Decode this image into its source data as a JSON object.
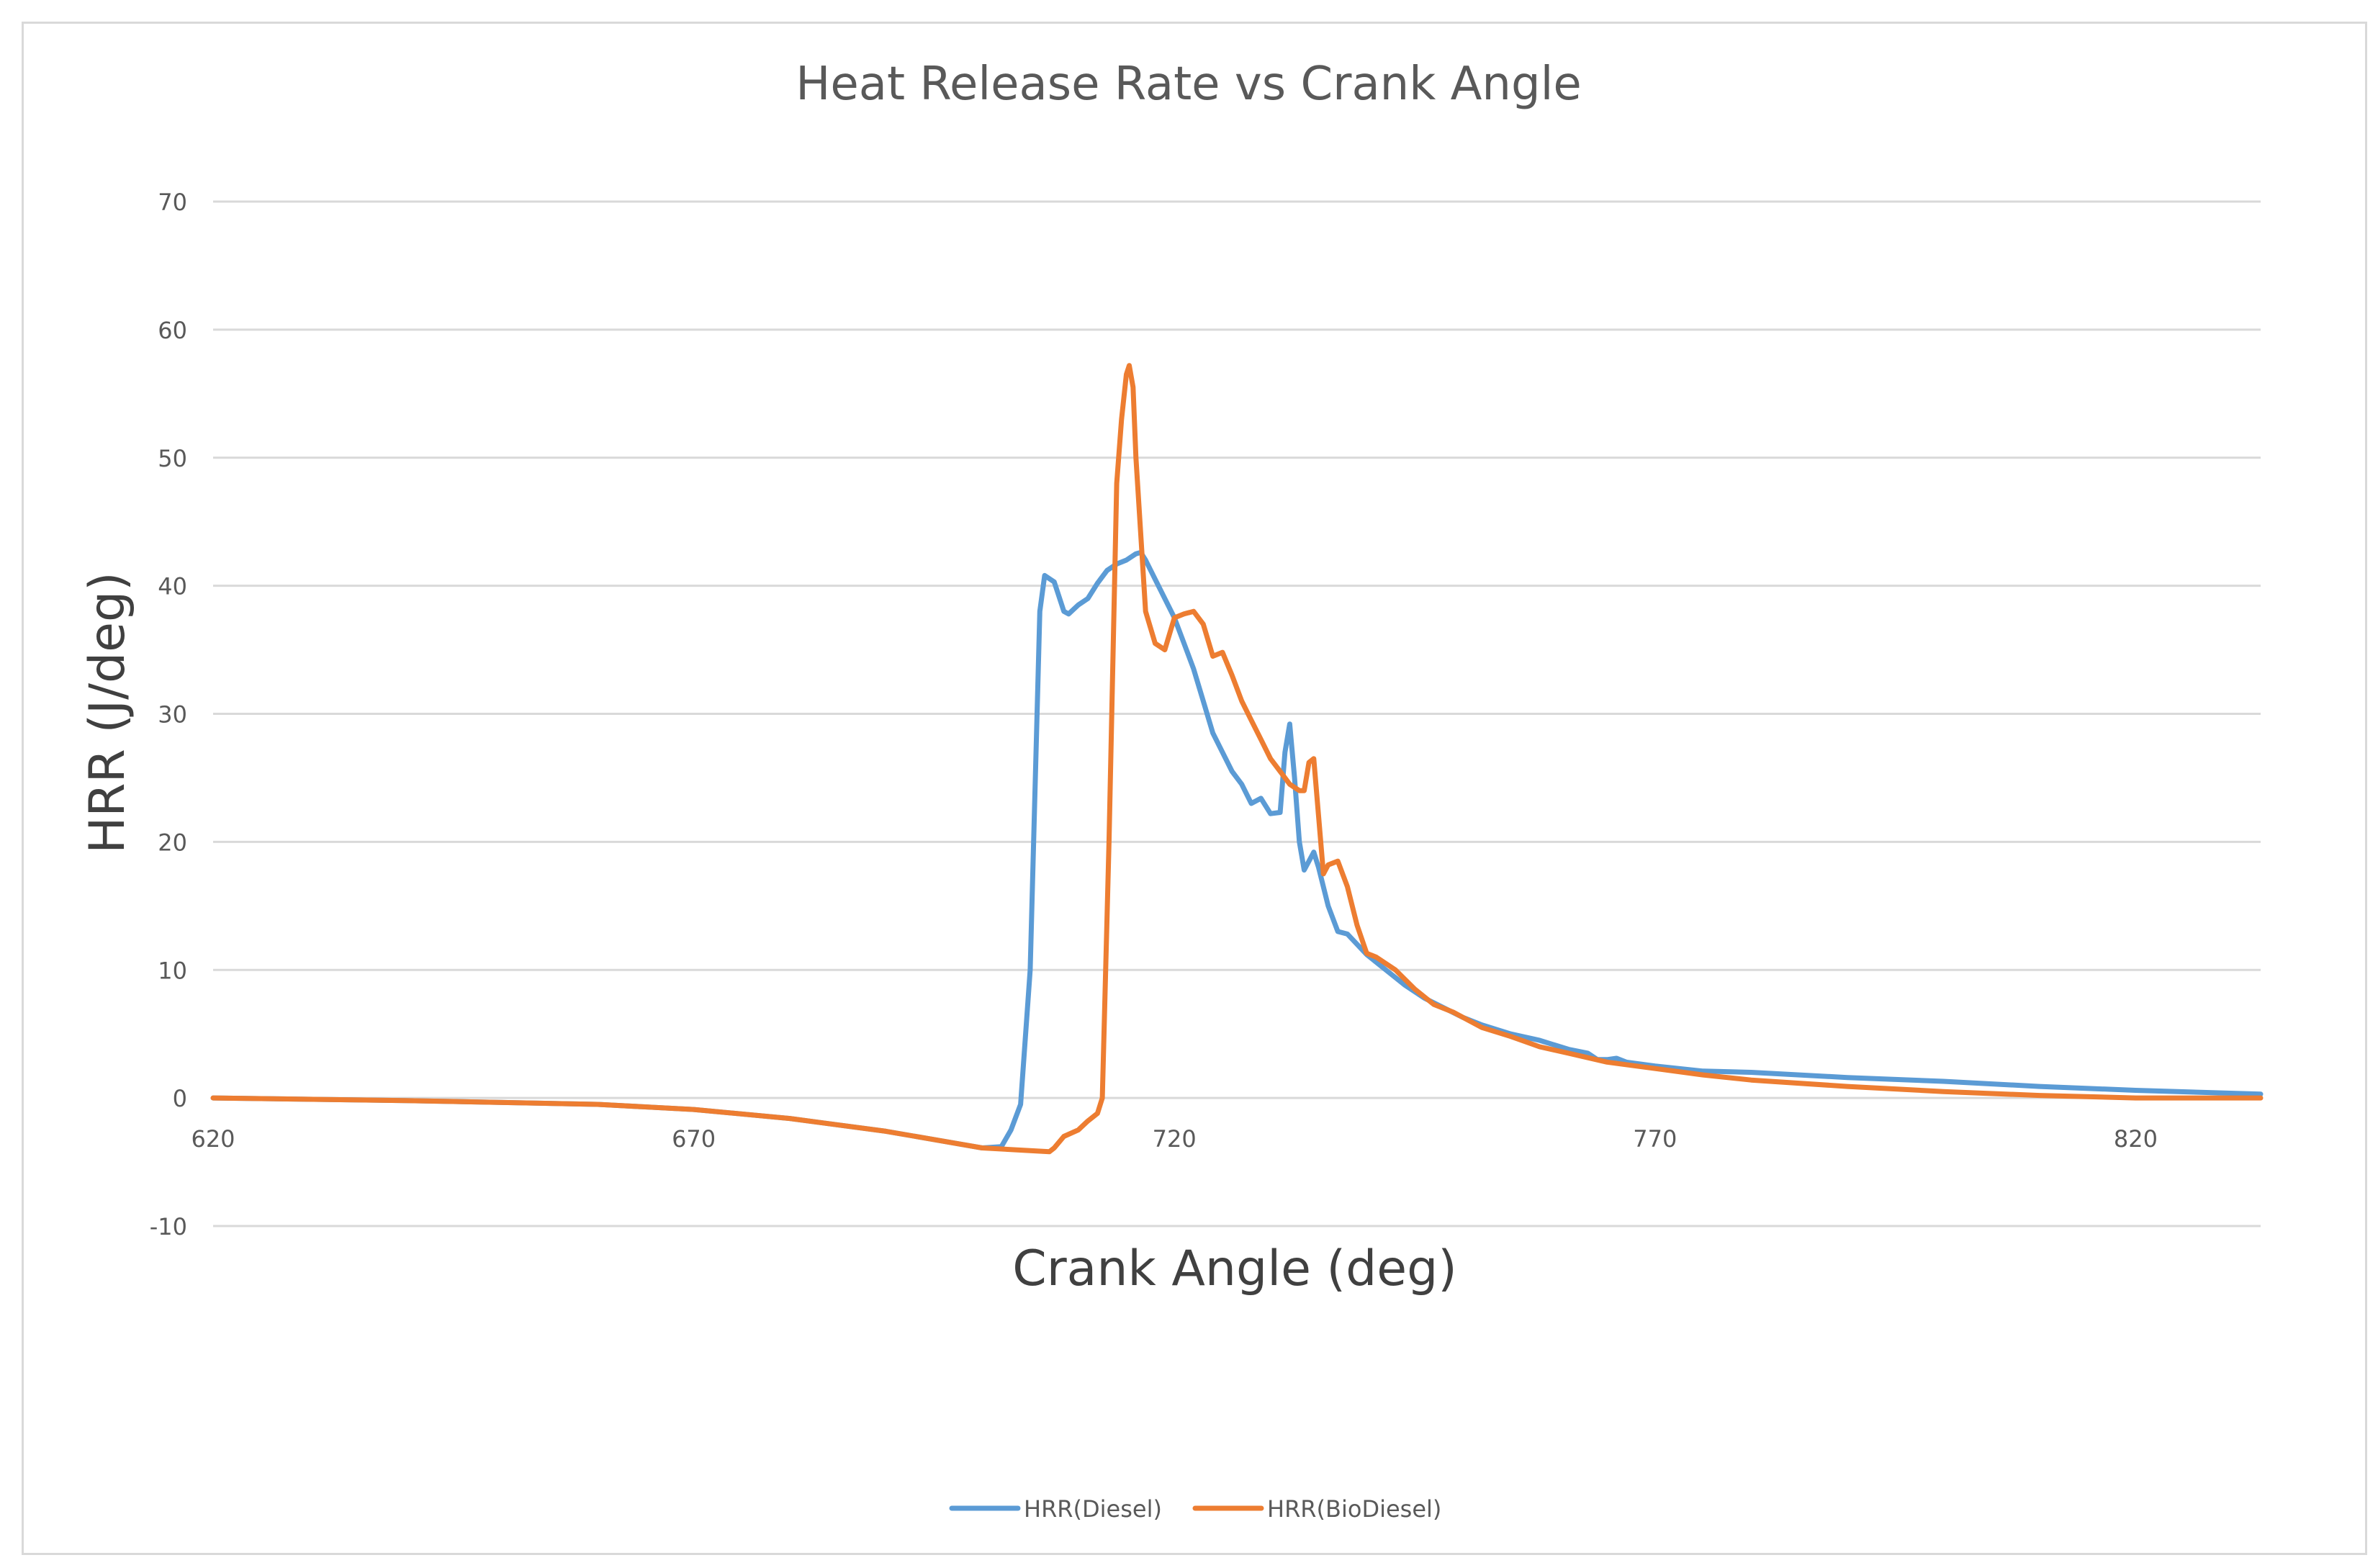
{
  "chart_data": {
    "type": "line",
    "title": "Heat Release Rate vs Crank Angle",
    "xlabel": "Crank Angle (deg)",
    "ylabel": "HRR (J/deg)",
    "xlim": [
      620,
      833
    ],
    "ylim": [
      -10,
      70
    ],
    "x_ticks": [
      "620",
      "670",
      "720",
      "770",
      "820"
    ],
    "y_ticks": [
      "-10",
      "0",
      "10",
      "20",
      "30",
      "40",
      "50",
      "60",
      "70"
    ],
    "grid": "horizontal",
    "legend_position": "bottom",
    "series": [
      {
        "name": "HRR(Diesel)",
        "color": "#5B9BD5",
        "points": [
          [
            620,
            0.0
          ],
          [
            640,
            -0.2
          ],
          [
            660,
            -0.5
          ],
          [
            670,
            -0.9
          ],
          [
            680,
            -1.6
          ],
          [
            690,
            -2.6
          ],
          [
            700,
            -3.9
          ],
          [
            702,
            -3.8
          ],
          [
            703,
            -2.5
          ],
          [
            704,
            -0.5
          ],
          [
            705,
            10.0
          ],
          [
            706,
            38.0
          ],
          [
            706.5,
            40.8
          ],
          [
            707.5,
            40.3
          ],
          [
            708.5,
            38.0
          ],
          [
            709,
            37.8
          ],
          [
            710,
            38.5
          ],
          [
            711,
            39.0
          ],
          [
            712,
            40.2
          ],
          [
            713,
            41.2
          ],
          [
            714,
            41.7
          ],
          [
            715,
            42.0
          ],
          [
            716,
            42.5
          ],
          [
            716.5,
            42.6
          ],
          [
            717,
            42.0
          ],
          [
            718,
            40.5
          ],
          [
            719,
            39.0
          ],
          [
            720,
            37.5
          ],
          [
            721,
            35.5
          ],
          [
            722,
            33.5
          ],
          [
            723,
            31.0
          ],
          [
            724,
            28.5
          ],
          [
            725,
            27.0
          ],
          [
            726,
            25.5
          ],
          [
            727,
            24.5
          ],
          [
            728,
            23.0
          ],
          [
            729,
            23.4
          ],
          [
            730,
            22.2
          ],
          [
            731,
            22.3
          ],
          [
            731.5,
            27.0
          ],
          [
            732,
            29.2
          ],
          [
            732.5,
            25.0
          ],
          [
            733,
            20.0
          ],
          [
            733.5,
            17.8
          ],
          [
            734.5,
            19.2
          ],
          [
            735,
            18.0
          ],
          [
            736,
            15.0
          ],
          [
            737,
            13.0
          ],
          [
            738,
            12.8
          ],
          [
            740,
            11.2
          ],
          [
            742,
            10.0
          ],
          [
            744,
            8.8
          ],
          [
            746,
            7.8
          ],
          [
            750,
            6.3
          ],
          [
            752,
            5.7
          ],
          [
            755,
            5.0
          ],
          [
            758,
            4.5
          ],
          [
            761,
            3.8
          ],
          [
            763,
            3.5
          ],
          [
            764,
            3.0
          ],
          [
            765,
            3.0
          ],
          [
            766,
            3.1
          ],
          [
            767,
            2.8
          ],
          [
            770,
            2.5
          ],
          [
            775,
            2.1
          ],
          [
            780,
            2.0
          ],
          [
            790,
            1.6
          ],
          [
            800,
            1.3
          ],
          [
            810,
            0.9
          ],
          [
            820,
            0.6
          ],
          [
            833,
            0.3
          ]
        ]
      },
      {
        "name": "HRR(BioDiesel)",
        "color": "#ED7D31",
        "points": [
          [
            620,
            0.0
          ],
          [
            640,
            -0.2
          ],
          [
            660,
            -0.5
          ],
          [
            670,
            -0.9
          ],
          [
            680,
            -1.6
          ],
          [
            690,
            -2.6
          ],
          [
            700,
            -3.9
          ],
          [
            707,
            -4.2
          ],
          [
            707.5,
            -3.9
          ],
          [
            708.5,
            -3.0
          ],
          [
            710,
            -2.5
          ],
          [
            711,
            -1.8
          ],
          [
            712,
            -1.2
          ],
          [
            712.5,
            0.0
          ],
          [
            713.2,
            20.0
          ],
          [
            714,
            48.0
          ],
          [
            714.5,
            53.0
          ],
          [
            715,
            56.5
          ],
          [
            715.3,
            57.2
          ],
          [
            715.7,
            55.5
          ],
          [
            716,
            50.0
          ],
          [
            717,
            38.0
          ],
          [
            718,
            35.5
          ],
          [
            719,
            35.0
          ],
          [
            720,
            37.5
          ],
          [
            721,
            37.8
          ],
          [
            722,
            38.0
          ],
          [
            723,
            37.0
          ],
          [
            724,
            34.5
          ],
          [
            725,
            34.8
          ],
          [
            726,
            33.0
          ],
          [
            727,
            31.0
          ],
          [
            728,
            29.5
          ],
          [
            729,
            28.0
          ],
          [
            730,
            26.5
          ],
          [
            731,
            25.5
          ],
          [
            732,
            24.5
          ],
          [
            733,
            24.0
          ],
          [
            733.5,
            24.0
          ],
          [
            734,
            26.2
          ],
          [
            734.5,
            26.5
          ],
          [
            735,
            22.0
          ],
          [
            735.5,
            17.5
          ],
          [
            736,
            18.2
          ],
          [
            737,
            18.5
          ],
          [
            738,
            16.5
          ],
          [
            739,
            13.5
          ],
          [
            740,
            11.3
          ],
          [
            741,
            11.0
          ],
          [
            743,
            10.0
          ],
          [
            745,
            8.5
          ],
          [
            747,
            7.3
          ],
          [
            749,
            6.7
          ],
          [
            752,
            5.5
          ],
          [
            755,
            4.8
          ],
          [
            758,
            4.0
          ],
          [
            761,
            3.5
          ],
          [
            765,
            2.8
          ],
          [
            770,
            2.3
          ],
          [
            775,
            1.8
          ],
          [
            780,
            1.4
          ],
          [
            790,
            0.9
          ],
          [
            800,
            0.5
          ],
          [
            810,
            0.2
          ],
          [
            820,
            0.0
          ],
          [
            833,
            0.0
          ]
        ]
      }
    ]
  }
}
